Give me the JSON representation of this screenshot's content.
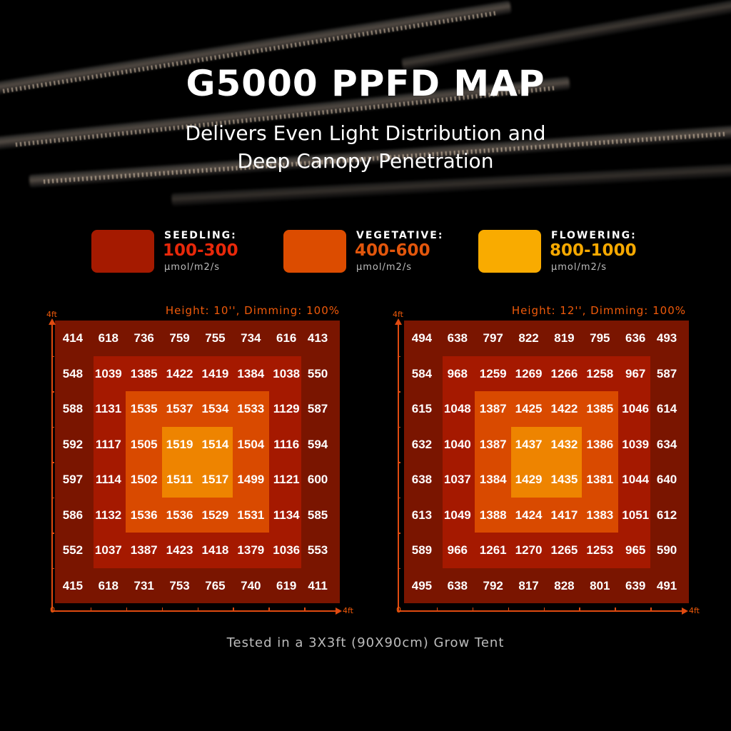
{
  "title": "G5000 PPFD MAP",
  "subtitle_lines": [
    "Delivers Even Light Distribution and",
    "Deep Canopy Penetration"
  ],
  "legend": [
    {
      "name": "SEEDLING:",
      "range": "100-300",
      "unit": "μmol/m2/s",
      "swatch_color": "#a51a00",
      "range_color": "#e8280a"
    },
    {
      "name": "VEGETATIVE:",
      "range": "400-600",
      "unit": "μmol/m2/s",
      "swatch_color": "#dc4c00",
      "range_color": "#e2560c"
    },
    {
      "name": "FLOWERING:",
      "range": "800-1000",
      "unit": "μmol/m2/s",
      "swatch_color": "#f9ab00",
      "range_color": "#f5a800"
    }
  ],
  "zone_colors": [
    "#7a1500",
    "#a51900",
    "#d94a00",
    "#ee8400"
  ],
  "footer": "Tested in a 3X3ft (90X90cm) Grow Tent",
  "chart_data": [
    {
      "type": "heatmap",
      "title": "Height: 10'', Dimming: 100%",
      "x_axis": {
        "min_label": "0",
        "max_label": "4ft"
      },
      "y_axis": {
        "max_label": "4ft"
      },
      "values": [
        [
          414,
          618,
          736,
          759,
          755,
          734,
          616,
          413
        ],
        [
          548,
          1039,
          1385,
          1422,
          1419,
          1384,
          1038,
          550
        ],
        [
          588,
          1131,
          1535,
          1537,
          1534,
          1533,
          1129,
          587
        ],
        [
          592,
          1117,
          1505,
          1519,
          1514,
          1504,
          1116,
          594
        ],
        [
          597,
          1114,
          1502,
          1511,
          1517,
          1499,
          1121,
          600
        ],
        [
          586,
          1132,
          1536,
          1536,
          1529,
          1531,
          1134,
          585
        ],
        [
          552,
          1037,
          1387,
          1423,
          1418,
          1379,
          1036,
          553
        ],
        [
          415,
          618,
          731,
          753,
          765,
          740,
          619,
          411
        ]
      ]
    },
    {
      "type": "heatmap",
      "title": "Height: 12'', Dimming: 100%",
      "x_axis": {
        "min_label": "0",
        "max_label": "4ft"
      },
      "y_axis": {
        "max_label": "4ft"
      },
      "values": [
        [
          494,
          638,
          797,
          822,
          819,
          795,
          636,
          493
        ],
        [
          584,
          968,
          1259,
          1269,
          1266,
          1258,
          967,
          587
        ],
        [
          615,
          1048,
          1387,
          1425,
          1422,
          1385,
          1046,
          614
        ],
        [
          632,
          1040,
          1387,
          1437,
          1432,
          1386,
          1039,
          634
        ],
        [
          638,
          1037,
          1384,
          1429,
          1435,
          1381,
          1044,
          640
        ],
        [
          613,
          1049,
          1388,
          1424,
          1417,
          1383,
          1051,
          612
        ],
        [
          589,
          966,
          1261,
          1270,
          1265,
          1253,
          965,
          590
        ],
        [
          495,
          638,
          792,
          817,
          828,
          801,
          639,
          491
        ]
      ]
    }
  ]
}
